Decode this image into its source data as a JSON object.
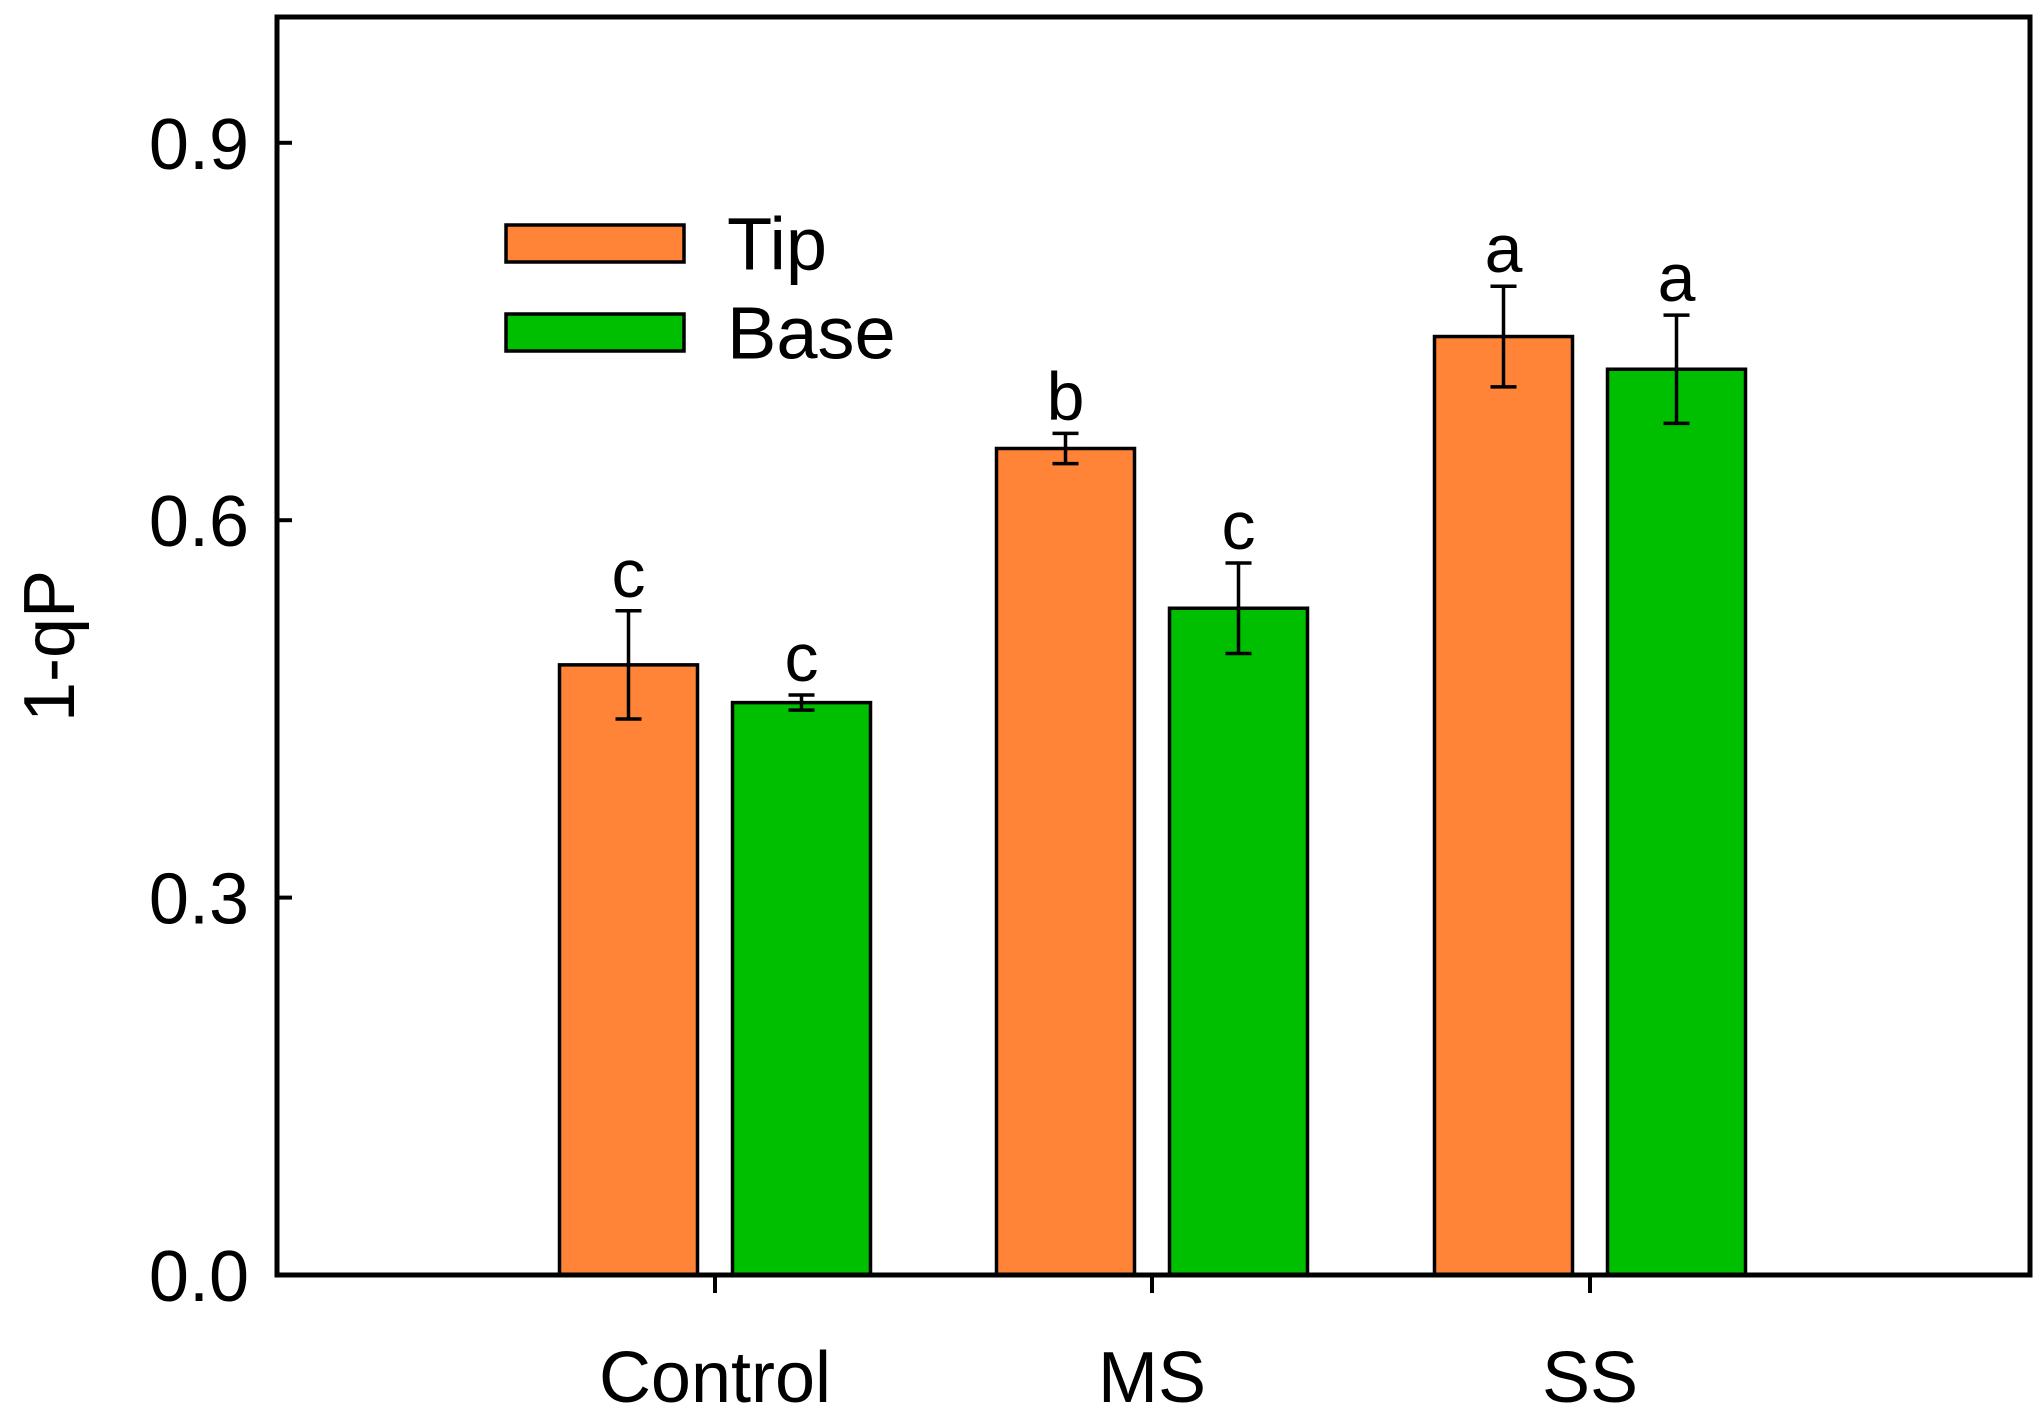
{
  "chart_data": {
    "type": "bar",
    "title": "",
    "xlabel": "",
    "ylabel": "1-qP",
    "ylim": [
      0,
      1.0
    ],
    "yticks": [
      0.0,
      0.3,
      0.6,
      0.9
    ],
    "ytick_labels": [
      "0.0",
      "0.3",
      "0.6",
      "0.9"
    ],
    "categories": [
      "Control",
      "MS",
      "SS"
    ],
    "legend_position": "top-left",
    "series": [
      {
        "name": "Tip",
        "color": "#FF8438",
        "values": [
          0.485,
          0.657,
          0.746
        ],
        "errors": [
          0.043,
          0.012,
          0.04
        ],
        "significance": [
          "c",
          "b",
          "a"
        ]
      },
      {
        "name": "Base",
        "color": "#00BF00",
        "values": [
          0.455,
          0.53,
          0.72
        ],
        "errors": [
          0.006,
          0.036,
          0.043
        ],
        "significance": [
          "c",
          "c",
          "a"
        ]
      }
    ]
  }
}
